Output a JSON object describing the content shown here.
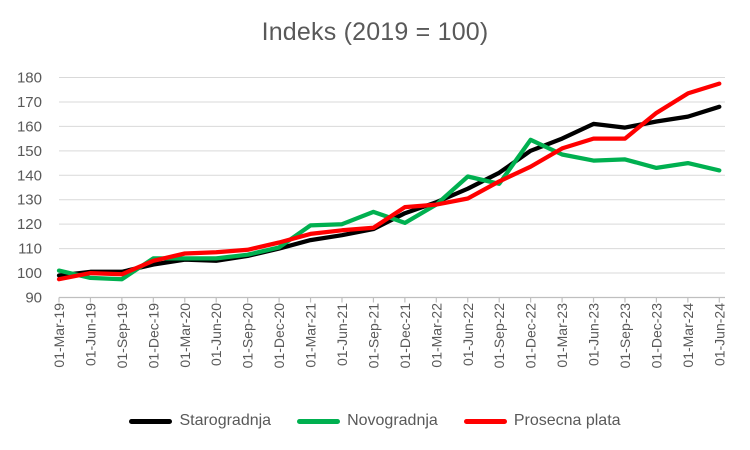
{
  "title": "Indeks (2019 = 100)",
  "chart_data": {
    "type": "line",
    "title": "Indeks (2019 = 100)",
    "categories": [
      "01-Mar-19",
      "01-Jun-19",
      "01-Sep-19",
      "01-Dec-19",
      "01-Mar-20",
      "01-Jun-20",
      "01-Sep-20",
      "01-Dec-20",
      "01-Mar-21",
      "01-Jun-21",
      "01-Sep-21",
      "01-Dec-21",
      "01-Mar-22",
      "01-Jun-22",
      "01-Sep-22",
      "01-Dec-22",
      "01-Mar-23",
      "01-Jun-23",
      "01-Sep-23",
      "01-Dec-23",
      "01-Mar-24",
      "01-Jun-24"
    ],
    "series": [
      {
        "name": "Starogradnja",
        "color": "#000000",
        "values": [
          99,
          100.5,
          100.5,
          103.5,
          105.5,
          105,
          107,
          110,
          113.5,
          115.5,
          118,
          124.5,
          129,
          134.5,
          141,
          150,
          155,
          161,
          159.5,
          162,
          164,
          168
        ]
      },
      {
        "name": "Novogradnja",
        "color": "#00B050",
        "values": [
          101,
          98,
          97.5,
          106,
          106,
          106,
          107.5,
          110.5,
          119.5,
          120,
          125,
          120.5,
          128,
          139.5,
          136.5,
          154.5,
          148.5,
          146,
          146.5,
          143,
          145,
          142
        ]
      },
      {
        "name": "Prosecna plata",
        "color": "#FF0000",
        "values": [
          97.5,
          100,
          99.5,
          105,
          108,
          108.5,
          109.5,
          112.5,
          116,
          117.5,
          118.5,
          127,
          128,
          130.5,
          137.5,
          143.5,
          151,
          155,
          155,
          165.5,
          173.5,
          177.5
        ]
      }
    ],
    "ylim": [
      90,
      180
    ],
    "ytick_step": 10,
    "xlabel": "",
    "ylabel": "",
    "grid": true,
    "legend_position": "bottom",
    "style": {
      "grid_color": "#D9D9D9",
      "axis_color": "#BFBFBF",
      "tick_label_color": "#595959",
      "line_width": 4.25
    }
  }
}
